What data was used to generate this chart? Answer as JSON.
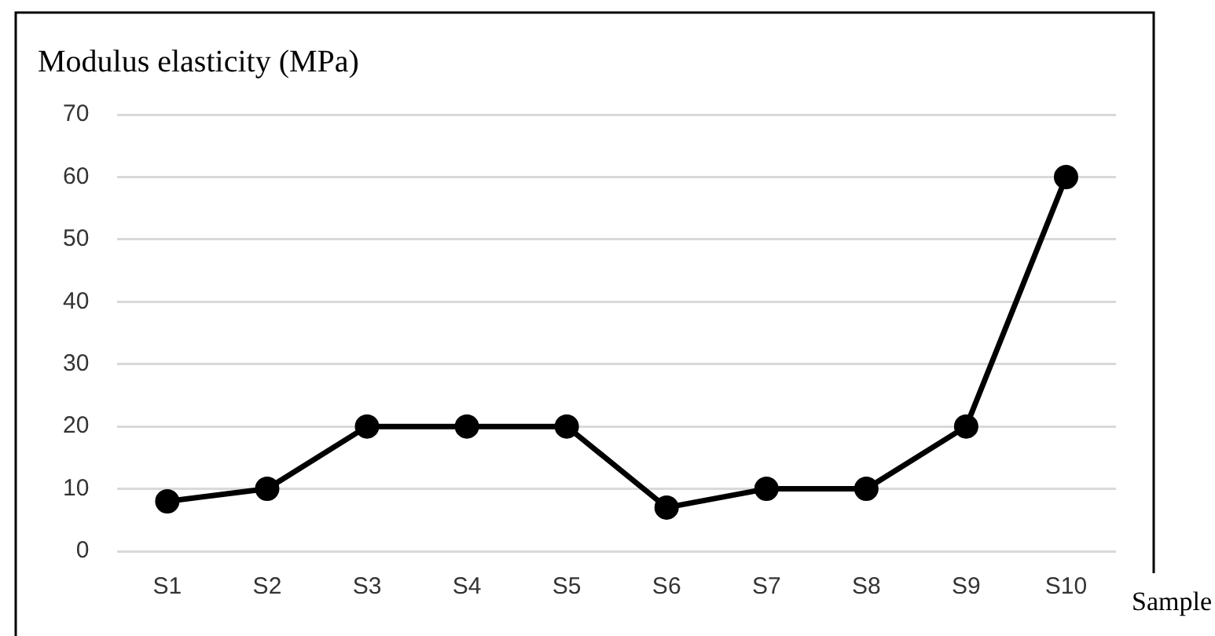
{
  "chart_data": {
    "type": "line",
    "ylabel": "Modulus elasticity (MPa)",
    "xlabel": "Sample",
    "categories": [
      "S1",
      "S2",
      "S3",
      "S4",
      "S5",
      "S6",
      "S7",
      "S8",
      "S9",
      "S10"
    ],
    "series": [
      {
        "color": "#000000",
        "values": [
          8,
          10,
          20,
          20,
          20,
          7,
          10,
          10,
          20,
          60
        ]
      }
    ],
    "ylim": [
      0,
      70
    ],
    "yticks": [
      0,
      10,
      20,
      30,
      40,
      50,
      60,
      70
    ],
    "grid": "y",
    "legend": false,
    "marker": "circle",
    "line_style": "solid"
  }
}
